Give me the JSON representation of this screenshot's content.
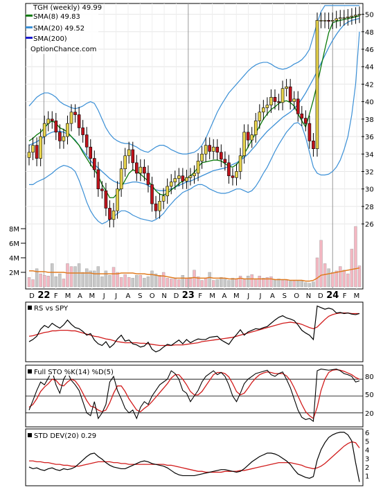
{
  "colors": {
    "up": "#e8d44d",
    "down": "#c0121b",
    "sma8": "#0a7a0a",
    "sma20": "#3a8fd6",
    "sma200": "#1a1ad0",
    "bollinger": "#3a8fd6",
    "vol_up": "#f4b7c2",
    "vol_down": "#c8c8c8",
    "vol_avg": "#e07a1f",
    "rs_line": "#000000",
    "rs_ma": "#d11b1b",
    "sto_k": "#000000",
    "sto_d": "#d11b1b",
    "std_line": "#000000",
    "std_ma": "#d11b1b"
  },
  "legend": {
    "ticker_line": "TGH (weekly) 49.99",
    "sma8_label": "SMA(8) 49.83",
    "sma20_label": "SMA(20) 49.52",
    "sma200_label": "SMA(200)",
    "site": "OptionChance.com"
  },
  "x_labels": [
    "D",
    "22",
    "F",
    "M",
    "A",
    "M",
    "J",
    "J",
    "A",
    "S",
    "O",
    "N",
    "D",
    "23",
    "F",
    "M",
    "A",
    "M",
    "J",
    "J",
    "A",
    "S",
    "O",
    "N",
    "D",
    "24",
    "F",
    "M"
  ],
  "panels": {
    "rs": {
      "title": "RS vs SPY"
    },
    "sto": {
      "title": "Full STO %K(14) %D(5)",
      "ticks": [
        "80",
        "50",
        "20"
      ]
    },
    "std": {
      "title": "STD DEV(20) 0.29",
      "ticks": [
        "6",
        "5",
        "4",
        "3",
        "2",
        "1"
      ]
    }
  },
  "chart_data": {
    "type": "candlestick",
    "title": "TGH (weekly) 49.99",
    "price_axis": {
      "ylim": [
        24.5,
        51
      ],
      "ticks": [
        26,
        28,
        30,
        32,
        34,
        36,
        38,
        40,
        42,
        44,
        46,
        48,
        50
      ]
    },
    "volume_axis": {
      "ticks": [
        "2M",
        "4M",
        "6M",
        "8M"
      ]
    },
    "close": [
      34.2,
      35.0,
      33.5,
      36.0,
      37.5,
      38.0,
      37.8,
      36.5,
      35.5,
      36.0,
      37.5,
      38.8,
      38.5,
      37.0,
      36.2,
      34.8,
      33.5,
      32.2,
      30.0,
      29.8,
      27.8,
      26.5,
      27.5,
      30.0,
      32.3,
      33.8,
      34.5,
      33.0,
      31.8,
      32.5,
      31.8,
      30.5,
      28.3,
      27.5,
      28.6,
      29.2,
      30.3,
      30.8,
      31.2,
      31.5,
      30.9,
      31.3,
      31.5,
      31.8,
      33.2,
      34.0,
      35.0,
      34.3,
      34.8,
      34.2,
      33.4,
      33.0,
      31.5,
      31.3,
      32.0,
      33.8,
      36.5,
      35.6,
      36.2,
      37.8,
      38.8,
      39.3,
      39.6,
      40.5,
      40.0,
      39.9,
      41.5,
      41.7,
      40.0,
      40.3,
      38.6,
      38.1,
      37.5,
      35.5,
      34.6,
      49.3,
      49.3,
      49.3,
      49.2,
      49.3,
      49.5,
      49.6,
      49.6,
      49.7,
      49.8,
      49.9,
      49.99
    ],
    "sma8": [
      35.5,
      35.8,
      36.2,
      36.5,
      37.0,
      37.5,
      37.8,
      37.5,
      37.0,
      36.8,
      36.5,
      36.0,
      35.5,
      35.0,
      34.2,
      33.5,
      32.8,
      32.2,
      31.5,
      30.5,
      29.8,
      29.0,
      29.0,
      29.5,
      30.2,
      31.0,
      31.8,
      32.2,
      32.0,
      31.7,
      31.3,
      30.9,
      30.4,
      29.8,
      29.4,
      29.3,
      29.5,
      29.9,
      30.2,
      30.6,
      30.9,
      31.2,
      31.5,
      31.9,
      32.5,
      33.0,
      33.1,
      33.2,
      33.3,
      33.3,
      33.2,
      32.9,
      32.6,
      32.5,
      32.8,
      33.3,
      34.0,
      34.8,
      35.6,
      36.4,
      37.2,
      38.0,
      38.6,
      39.1,
      39.4,
      39.8,
      40.0,
      40.1,
      39.9,
      39.5,
      38.6,
      37.8,
      37.1,
      38.6,
      40.2,
      42.0,
      44.0,
      46.0,
      47.9,
      49.0,
      49.2,
      49.3,
      49.4,
      49.5,
      49.6,
      49.7,
      49.83
    ],
    "sma20": [
      35.0,
      35.2,
      35.4,
      35.7,
      36.0,
      36.3,
      36.5,
      36.6,
      36.6,
      36.5,
      36.3,
      36.0,
      35.6,
      35.0,
      34.4,
      33.8,
      33.2,
      32.8,
      32.4,
      32.0,
      31.6,
      31.2,
      30.9,
      30.7,
      30.6,
      30.6,
      30.7,
      30.8,
      30.8,
      30.7,
      30.6,
      30.4,
      30.1,
      29.9,
      29.8,
      29.8,
      29.9,
      30.0,
      30.2,
      30.4,
      30.6,
      30.8,
      30.9,
      31.1,
      31.3,
      31.5,
      31.7,
      31.9,
      32.1,
      32.2,
      32.3,
      32.4,
      32.6,
      32.8,
      33.0,
      33.3,
      33.6,
      34.0,
      34.5,
      35.0,
      35.6,
      36.1,
      36.6,
      37.0,
      37.4,
      37.8,
      38.2,
      38.5,
      38.8,
      39.2,
      39.7,
      40.3,
      41.0,
      41.8,
      42.6,
      43.5,
      44.4,
      45.3,
      46.2,
      47.0,
      47.7,
      48.3,
      48.8,
      49.1,
      49.3,
      49.4,
      49.52
    ],
    "bb_upper": [
      39.5,
      40.0,
      40.5,
      40.8,
      41.0,
      41.0,
      40.8,
      40.5,
      40.0,
      39.7,
      39.5,
      39.3,
      39.2,
      39.3,
      39.5,
      39.8,
      40.0,
      39.8,
      39.0,
      38.0,
      37.0,
      36.3,
      35.8,
      35.5,
      35.3,
      35.2,
      35.2,
      35.0,
      34.8,
      34.5,
      34.3,
      34.2,
      34.5,
      34.8,
      35.0,
      35.0,
      34.8,
      34.5,
      34.3,
      34.1,
      34.0,
      34.0,
      34.1,
      34.2,
      34.5,
      35.0,
      35.8,
      36.8,
      37.8,
      38.8,
      39.6,
      40.3,
      41.0,
      41.5,
      42.0,
      42.5,
      43.0,
      43.5,
      43.9,
      44.2,
      44.4,
      44.5,
      44.5,
      44.3,
      44.0,
      43.8,
      43.7,
      43.8,
      44.0,
      44.3,
      44.5,
      44.8,
      45.3,
      46.0,
      47.5,
      49.0,
      50.3,
      51.0,
      51.0,
      51.0,
      51.0,
      51.0,
      51.0,
      51.0,
      51.0,
      51.0,
      51.0
    ],
    "bb_lower": [
      30.5,
      30.5,
      30.8,
      31.0,
      31.2,
      31.5,
      31.8,
      32.2,
      32.5,
      32.7,
      32.6,
      32.4,
      32.0,
      31.0,
      29.8,
      28.5,
      27.5,
      26.8,
      26.3,
      26.0,
      26.2,
      26.5,
      26.8,
      27.2,
      27.5,
      27.5,
      27.3,
      27.0,
      26.8,
      26.6,
      26.5,
      26.4,
      26.3,
      26.5,
      26.8,
      27.2,
      27.8,
      28.3,
      28.8,
      29.2,
      29.6,
      29.8,
      30.0,
      30.3,
      30.5,
      30.5,
      30.3,
      30.0,
      29.8,
      29.6,
      29.5,
      29.5,
      29.6,
      29.8,
      30.0,
      30.0,
      29.8,
      29.6,
      29.8,
      30.3,
      31.0,
      31.8,
      32.5,
      33.4,
      34.3,
      35.1,
      35.8,
      36.5,
      37.0,
      37.5,
      37.6,
      37.2,
      35.9,
      34.2,
      32.5,
      31.8,
      31.6,
      31.6,
      31.7,
      32.0,
      32.5,
      33.3,
      34.5,
      36.0,
      38.5,
      42.0,
      48.0
    ],
    "volume_m": [
      1.3,
      1.0,
      2.5,
      1.8,
      1.6,
      1.5,
      3.2,
      1.4,
      1.8,
      1.1,
      3.2,
      2.8,
      2.8,
      3.2,
      2.0,
      2.5,
      2.2,
      2.2,
      2.8,
      1.4,
      2.2,
      1.6,
      2.7,
      2.0,
      1.3,
      1.7,
      1.3,
      1.2,
      1.6,
      1.6,
      1.2,
      1.4,
      2.2,
      1.8,
      1.6,
      2.0,
      1.2,
      1.1,
      1.1,
      1.0,
      1.6,
      1.2,
      1.3,
      2.3,
      1.4,
      0.9,
      1.2,
      2.0,
      0.9,
      1.0,
      1.3,
      1.2,
      0.9,
      1.2,
      1.1,
      1.5,
      1.0,
      1.5,
      1.7,
      1.1,
      1.5,
      1.2,
      1.3,
      1.4,
      1.0,
      1.1,
      0.9,
      0.9,
      0.8,
      0.8,
      0.9,
      0.8,
      0.6,
      0.5,
      0.7,
      4.0,
      6.4,
      3.2,
      2.5,
      2.0,
      2.2,
      2.8,
      2.3,
      1.8,
      5.2,
      8.3,
      2.9
    ],
    "volume_avg_m": [
      2.2,
      2.2,
      2.1,
      2.1,
      2.1,
      2.0,
      2.0,
      2.0,
      2.0,
      2.0,
      1.9,
      1.9,
      1.9,
      1.9,
      1.9,
      1.9,
      1.9,
      1.8,
      1.8,
      1.8,
      1.8,
      1.8,
      1.8,
      1.8,
      1.9,
      1.9,
      1.9,
      1.9,
      1.8,
      1.8,
      1.8,
      1.7,
      1.7,
      1.6,
      1.5,
      1.5,
      1.4,
      1.3,
      1.2,
      1.2,
      1.2,
      1.2,
      1.2,
      1.3,
      1.2,
      1.2,
      1.2,
      1.3,
      1.2,
      1.2,
      1.2,
      1.2,
      1.1,
      1.1,
      1.1,
      1.2,
      1.1,
      1.1,
      1.1,
      1.1,
      1.1,
      1.1,
      1.1,
      1.1,
      1.0,
      1.0,
      1.0,
      1.0,
      0.9,
      0.9,
      0.9,
      0.9,
      0.8,
      0.8,
      0.9,
      1.2,
      1.6,
      1.7,
      1.8,
      1.9,
      2.0,
      2.1,
      2.2,
      2.3,
      2.4,
      2.5,
      2.6
    ],
    "rs": [
      0.32,
      0.36,
      0.42,
      0.55,
      0.62,
      0.58,
      0.66,
      0.61,
      0.57,
      0.63,
      0.72,
      0.64,
      0.58,
      0.56,
      0.51,
      0.44,
      0.47,
      0.35,
      0.28,
      0.25,
      0.32,
      0.21,
      0.27,
      0.37,
      0.44,
      0.33,
      0.35,
      0.28,
      0.26,
      0.22,
      0.24,
      0.31,
      0.18,
      0.13,
      0.16,
      0.22,
      0.27,
      0.25,
      0.3,
      0.35,
      0.28,
      0.36,
      0.3,
      0.34,
      0.37,
      0.36,
      0.36,
      0.4,
      0.41,
      0.42,
      0.35,
      0.31,
      0.27,
      0.37,
      0.45,
      0.54,
      0.44,
      0.5,
      0.53,
      0.56,
      0.55,
      0.58,
      0.6,
      0.66,
      0.72,
      0.77,
      0.8,
      0.76,
      0.74,
      0.71,
      0.63,
      0.53,
      0.48,
      0.44,
      0.36,
      0.98,
      0.95,
      0.92,
      0.94,
      0.92,
      0.85,
      0.86,
      0.84,
      0.85,
      0.83,
      0.82,
      0.84
    ],
    "rs_ma": [
      0.42,
      0.43,
      0.45,
      0.47,
      0.49,
      0.5,
      0.52,
      0.52,
      0.53,
      0.53,
      0.53,
      0.52,
      0.52,
      0.5,
      0.48,
      0.46,
      0.44,
      0.42,
      0.41,
      0.39,
      0.37,
      0.36,
      0.34,
      0.32,
      0.31,
      0.3,
      0.3,
      0.3,
      0.3,
      0.29,
      0.29,
      0.28,
      0.27,
      0.26,
      0.25,
      0.25,
      0.25,
      0.25,
      0.26,
      0.26,
      0.26,
      0.27,
      0.28,
      0.29,
      0.3,
      0.32,
      0.33,
      0.34,
      0.35,
      0.36,
      0.37,
      0.38,
      0.39,
      0.4,
      0.42,
      0.44,
      0.46,
      0.48,
      0.5,
      0.52,
      0.54,
      0.56,
      0.58,
      0.6,
      0.62,
      0.64,
      0.66,
      0.67,
      0.68,
      0.67,
      0.66,
      0.64,
      0.61,
      0.58,
      0.56,
      0.59,
      0.66,
      0.73,
      0.79,
      0.82,
      0.84,
      0.85,
      0.85,
      0.85,
      0.84,
      0.84,
      0.84
    ],
    "sto_k": [
      25,
      42,
      60,
      75,
      70,
      82,
      95,
      70,
      55,
      80,
      92,
      78,
      70,
      60,
      40,
      20,
      15,
      40,
      10,
      20,
      35,
      75,
      85,
      60,
      45,
      28,
      20,
      25,
      10,
      30,
      40,
      35,
      50,
      60,
      70,
      75,
      80,
      95,
      90,
      80,
      60,
      55,
      40,
      50,
      60,
      75,
      85,
      90,
      95,
      88,
      92,
      85,
      70,
      50,
      40,
      55,
      72,
      80,
      85,
      90,
      92,
      94,
      96,
      88,
      85,
      90,
      93,
      80,
      65,
      45,
      25,
      12,
      8,
      10,
      5,
      95,
      98,
      97,
      96,
      97,
      98,
      95,
      90,
      88,
      85,
      75,
      77
    ],
    "sto_d": [
      30,
      35,
      45,
      58,
      66,
      72,
      80,
      78,
      70,
      68,
      75,
      80,
      77,
      68,
      55,
      42,
      32,
      30,
      25,
      22,
      25,
      38,
      55,
      68,
      68,
      58,
      45,
      35,
      25,
      22,
      28,
      33,
      40,
      48,
      56,
      64,
      72,
      82,
      88,
      88,
      80,
      70,
      58,
      52,
      52,
      58,
      68,
      78,
      88,
      92,
      92,
      90,
      84,
      72,
      58,
      52,
      55,
      64,
      74,
      82,
      88,
      91,
      93,
      92,
      90,
      90,
      90,
      86,
      78,
      65,
      50,
      35,
      22,
      15,
      10,
      30,
      60,
      80,
      92,
      96,
      97,
      96,
      94,
      91,
      88,
      83,
      80
    ],
    "std": [
      2.0,
      1.8,
      1.9,
      1.7,
      1.6,
      1.8,
      1.9,
      1.7,
      1.6,
      1.8,
      1.7,
      1.8,
      2.0,
      2.4,
      2.8,
      3.2,
      3.5,
      3.6,
      3.2,
      2.9,
      2.5,
      2.2,
      2.0,
      1.9,
      1.8,
      1.8,
      2.0,
      2.2,
      2.4,
      2.6,
      2.7,
      2.6,
      2.4,
      2.3,
      2.2,
      2.1,
      1.9,
      1.6,
      1.3,
      1.1,
      1.0,
      1.0,
      1.0,
      1.0,
      1.1,
      1.2,
      1.3,
      1.4,
      1.5,
      1.6,
      1.7,
      1.7,
      1.6,
      1.5,
      1.4,
      1.5,
      1.8,
      2.2,
      2.6,
      2.9,
      3.2,
      3.4,
      3.6,
      3.6,
      3.5,
      3.3,
      3.0,
      2.7,
      2.3,
      1.7,
      1.2,
      1.0,
      0.8,
      0.7,
      0.9,
      2.8,
      4.0,
      4.8,
      5.4,
      5.7,
      5.9,
      6.0,
      6.0,
      5.7,
      5.0,
      2.5,
      0.29
    ],
    "std_ma": [
      2.7,
      2.7,
      2.6,
      2.6,
      2.5,
      2.5,
      2.4,
      2.3,
      2.3,
      2.2,
      2.2,
      2.1,
      2.1,
      2.1,
      2.2,
      2.3,
      2.4,
      2.5,
      2.6,
      2.6,
      2.6,
      2.6,
      2.5,
      2.5,
      2.4,
      2.4,
      2.3,
      2.3,
      2.3,
      2.3,
      2.3,
      2.3,
      2.3,
      2.3,
      2.3,
      2.3,
      2.2,
      2.2,
      2.1,
      2.0,
      1.9,
      1.8,
      1.7,
      1.6,
      1.5,
      1.5,
      1.4,
      1.4,
      1.4,
      1.4,
      1.4,
      1.5,
      1.5,
      1.5,
      1.5,
      1.6,
      1.6,
      1.7,
      1.8,
      1.9,
      2.0,
      2.1,
      2.2,
      2.3,
      2.4,
      2.5,
      2.5,
      2.5,
      2.5,
      2.4,
      2.3,
      2.2,
      2.0,
      1.9,
      1.8,
      1.9,
      2.1,
      2.4,
      2.8,
      3.2,
      3.6,
      4.0,
      4.4,
      4.7,
      4.9,
      4.8,
      4.2
    ]
  }
}
